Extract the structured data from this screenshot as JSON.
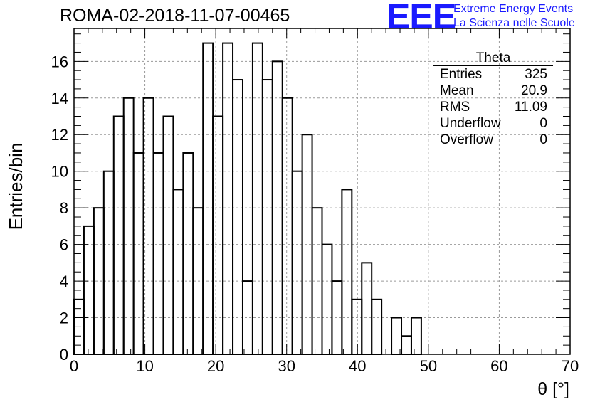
{
  "header": {
    "title": "ROMA-02-2018-11-07-00465",
    "logo_text": "EEE",
    "logo_line1": "Extreme Energy Events",
    "logo_line2": "La Scienza nelle Scuole",
    "logo_color": "#1a1aff"
  },
  "stats_box": {
    "name": "Theta",
    "rows": [
      {
        "label": "Entries",
        "value": "325"
      },
      {
        "label": "Mean",
        "value": "20.9"
      },
      {
        "label": "RMS",
        "value": "11.09"
      },
      {
        "label": "Underflow",
        "value": "0"
      },
      {
        "label": "Overflow",
        "value": "0"
      }
    ]
  },
  "chart_data": {
    "type": "bar",
    "style": "step-histogram",
    "xlabel": "θ [°]",
    "ylabel": "Entries/bin",
    "xlim": [
      0,
      70
    ],
    "ylim": [
      0,
      17.8
    ],
    "bin_width": 1.4,
    "x_ticks": [
      0,
      10,
      20,
      30,
      40,
      50,
      60,
      70
    ],
    "y_ticks": [
      0,
      2,
      4,
      6,
      8,
      10,
      12,
      14,
      16
    ],
    "grid": true,
    "grid_style": "dashed",
    "values": [
      3,
      7,
      8,
      10,
      13,
      14,
      11,
      14,
      11,
      13,
      9,
      11,
      8,
      17,
      13,
      17,
      15,
      4,
      17,
      15,
      16,
      14,
      10,
      12,
      8,
      6,
      4,
      9,
      3,
      5,
      3,
      0,
      2,
      1,
      2,
      0,
      0,
      0,
      0,
      0,
      0,
      0,
      0,
      0,
      0,
      0,
      0,
      0,
      0,
      0
    ]
  }
}
